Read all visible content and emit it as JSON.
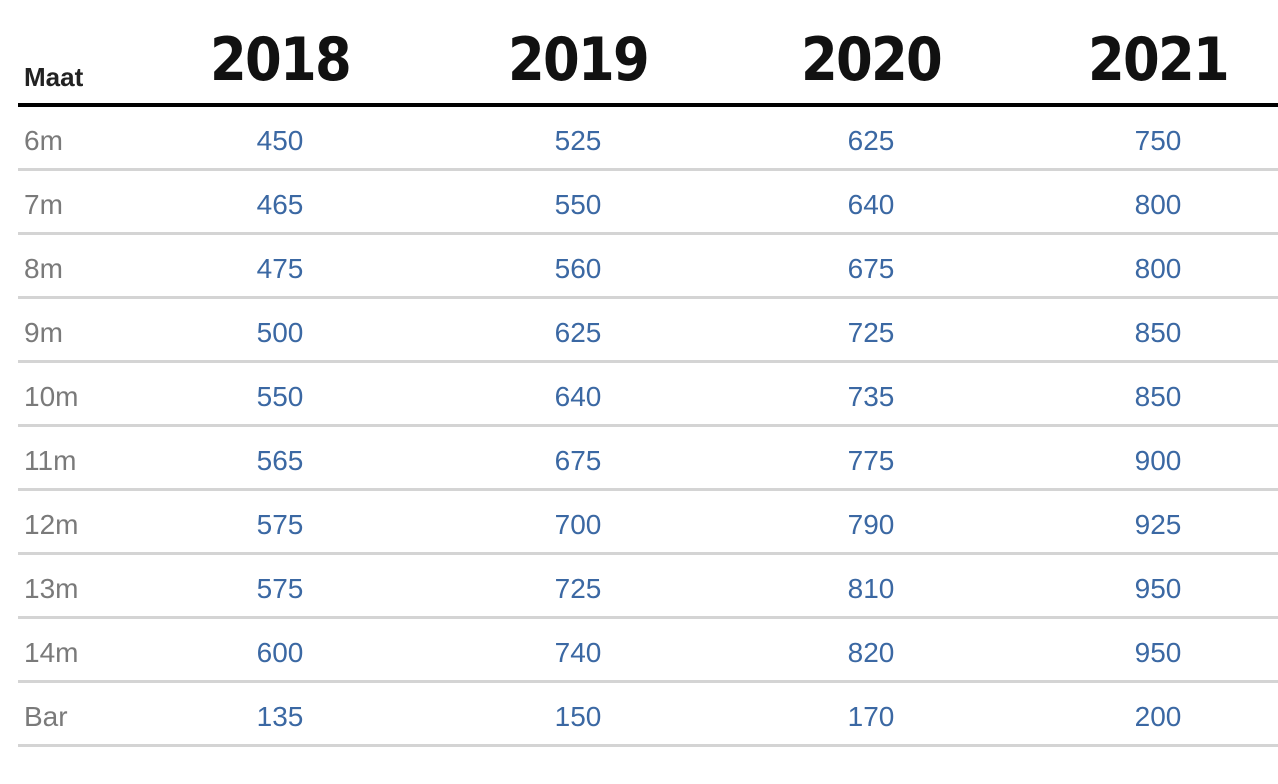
{
  "table": {
    "header": {
      "size_label": "Maat",
      "years": [
        "2018",
        "2019",
        "2020",
        "2021"
      ]
    },
    "rows": [
      {
        "size": "6m",
        "prices": [
          "450",
          "525",
          "625",
          "750"
        ]
      },
      {
        "size": "7m",
        "prices": [
          "465",
          "550",
          "640",
          "800"
        ]
      },
      {
        "size": "8m",
        "prices": [
          "475",
          "560",
          "675",
          "800"
        ]
      },
      {
        "size": "9m",
        "prices": [
          "500",
          "625",
          "725",
          "850"
        ]
      },
      {
        "size": "10m",
        "prices": [
          "550",
          "640",
          "735",
          "850"
        ]
      },
      {
        "size": "11m",
        "prices": [
          "565",
          "675",
          "775",
          "900"
        ]
      },
      {
        "size": "12m",
        "prices": [
          "575",
          "700",
          "790",
          "925"
        ]
      },
      {
        "size": "13m",
        "prices": [
          "575",
          "725",
          "810",
          "950"
        ]
      },
      {
        "size": "14m",
        "prices": [
          "600",
          "740",
          "820",
          "950"
        ]
      },
      {
        "size": "Bar",
        "prices": [
          "135",
          "150",
          "170",
          "200"
        ]
      }
    ]
  },
  "colors": {
    "header_text": "#111111",
    "size_text": "#7a7a7a",
    "price_text": "#3b68a3",
    "header_rule": "#000000",
    "row_rule": "#d4d4d4"
  }
}
